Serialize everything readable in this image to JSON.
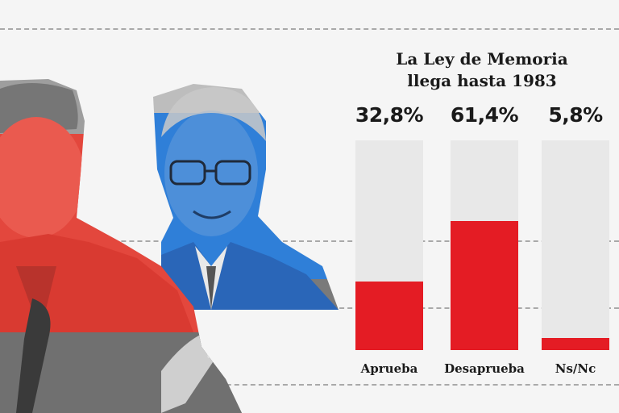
{
  "chart_data": {
    "type": "bar",
    "title": "La Ley de Memoria\nllega hasta 1983",
    "categories": [
      "Aprueba",
      "Desaprueba",
      "Ns/Nc"
    ],
    "values": [
      32.8,
      61.4,
      5.8
    ],
    "value_labels": [
      "32,8%",
      "61,4%",
      "5,8%"
    ],
    "ylim": [
      0,
      100
    ],
    "bar_color": "#e41c24",
    "track_color": "#e8e8e8",
    "grid": false,
    "legend": "none"
  },
  "colors": {
    "red": "#e41c24",
    "blue": "#2f7fd8",
    "background": "#f5f5f5"
  }
}
